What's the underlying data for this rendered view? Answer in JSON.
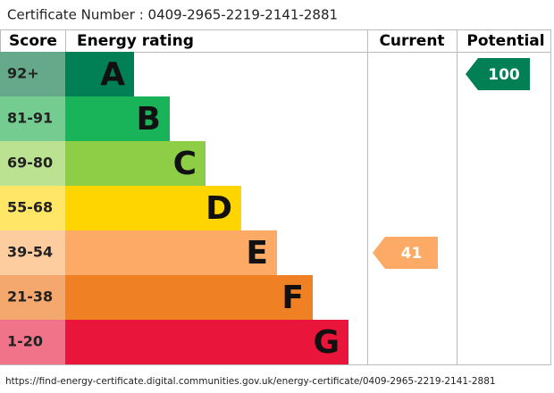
{
  "certificate": "Certificate Number : 0409-2965-2219-2141-2881",
  "headers": {
    "score": "Score",
    "rating": "Energy rating",
    "current": "Current",
    "potential": "Potential"
  },
  "bands": [
    {
      "score": "92+",
      "letter": "A",
      "color": "#008054",
      "score_color": "#66a88a"
    },
    {
      "score": "81-91",
      "letter": "B",
      "color": "#19b459",
      "score_color": "#75cc90"
    },
    {
      "score": "69-80",
      "letter": "C",
      "color": "#8dce46",
      "score_color": "#bbe290"
    },
    {
      "score": "55-68",
      "letter": "D",
      "color": "#ffd500",
      "score_color": "#ffe666"
    },
    {
      "score": "39-54",
      "letter": "E",
      "color": "#fcaa65",
      "score_color": "#fdcc9f"
    },
    {
      "score": "21-38",
      "letter": "F",
      "color": "#ef8023",
      "score_color": "#f5a86e"
    },
    {
      "score": "1-20",
      "letter": "G",
      "color": "#e9153b",
      "score_color": "#f07389"
    }
  ],
  "current": {
    "value": 41,
    "color": "#fcaa65"
  },
  "potential": {
    "value": 100,
    "color": "#008054"
  },
  "url": "https://find-energy-certificate.digital.communities.gov.uk/energy-certificate/0409-2965-2219-2141-2881"
}
